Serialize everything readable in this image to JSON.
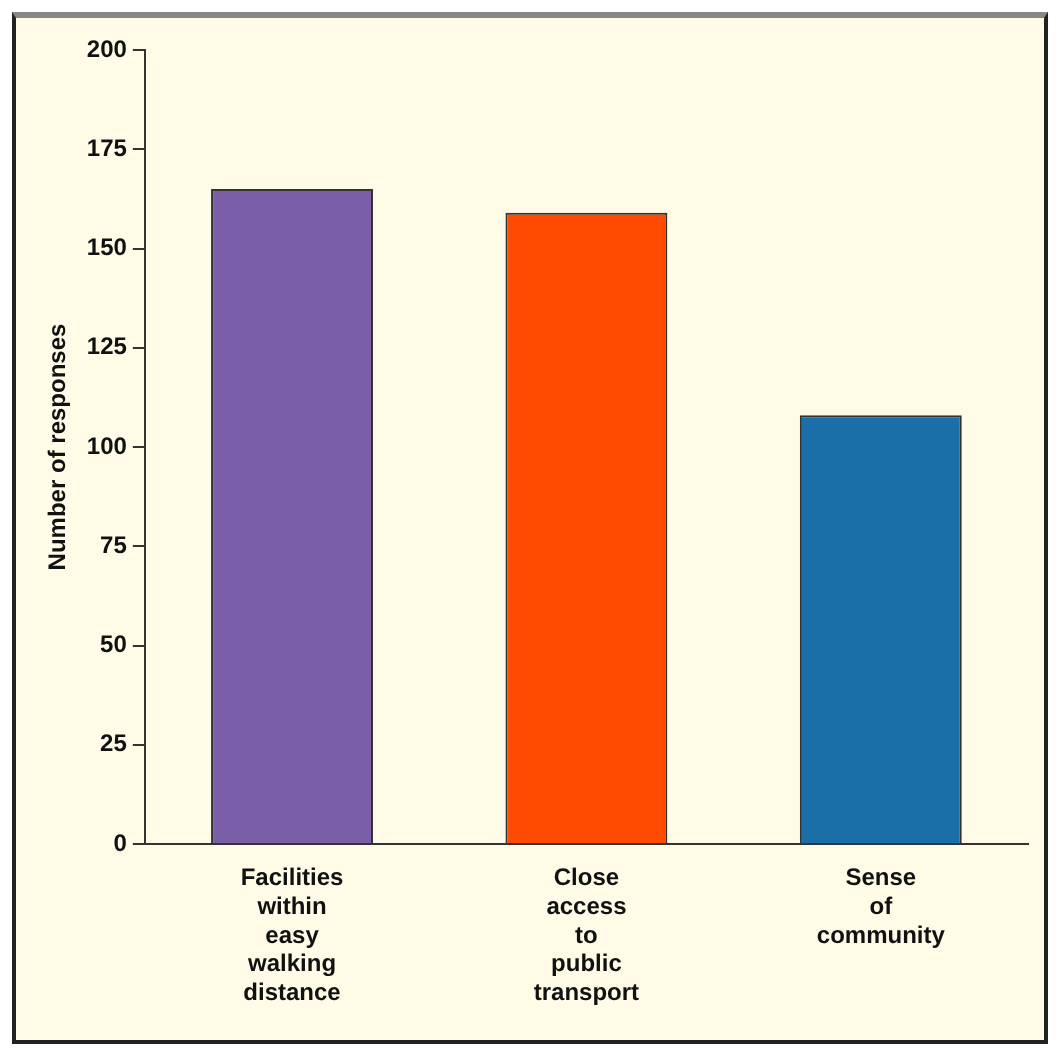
{
  "chart_data": {
    "type": "bar",
    "ylabel": "Number of responses",
    "categories": [
      "Facilities within easy walking distance",
      "Close access to public transport",
      "Sense of community"
    ],
    "values": [
      165,
      159,
      108
    ],
    "colors": [
      "#7b5ea8",
      "#ff4a00",
      "#1a6fa8"
    ],
    "ylim": [
      0,
      200
    ],
    "yticks": [
      0,
      25,
      50,
      75,
      100,
      125,
      150,
      175,
      200
    ],
    "grid": false,
    "legend": false
  }
}
